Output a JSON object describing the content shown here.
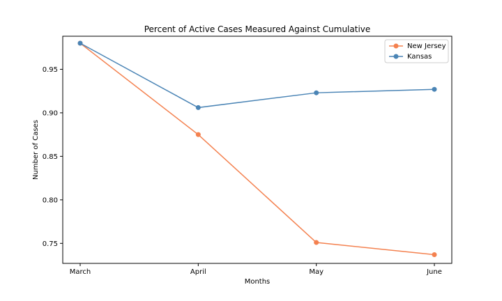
{
  "chart_data": {
    "type": "line",
    "title": "Percent of Active Cases Measured Against Cumulative",
    "xlabel": "Months",
    "ylabel": "Number of Cases",
    "categories": [
      "March",
      "April",
      "May",
      "June"
    ],
    "ylim": [
      0.727,
      0.988
    ],
    "yticks": [
      0.75,
      0.8,
      0.85,
      0.9,
      0.95
    ],
    "ytick_labels": [
      "0.75",
      "0.80",
      "0.85",
      "0.90",
      "0.95"
    ],
    "grid": false,
    "legend_position": "top-right",
    "series": [
      {
        "name": "New Jersey",
        "color": "#f4814f",
        "values": [
          0.98,
          0.875,
          0.751,
          0.737
        ]
      },
      {
        "name": "Kansas",
        "color": "#4a84b5",
        "values": [
          0.98,
          0.906,
          0.923,
          0.927
        ]
      }
    ]
  }
}
